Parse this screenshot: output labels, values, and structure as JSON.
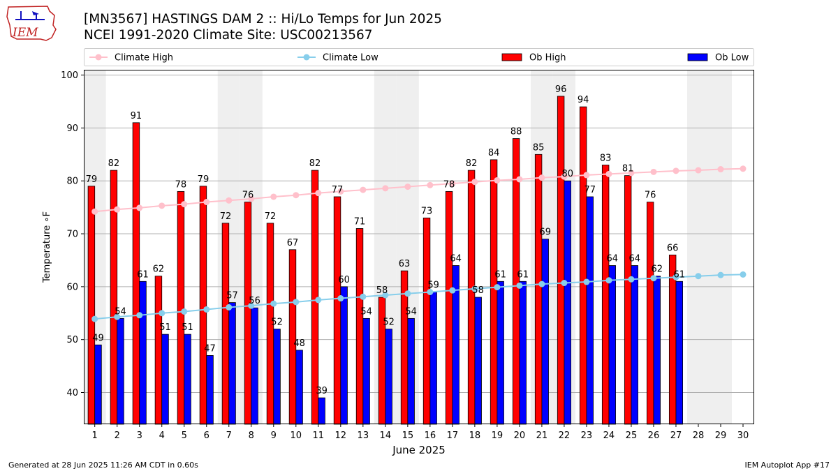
{
  "header": {
    "logo_text": "IEM",
    "title_line1": "[MN3567] HASTINGS DAM 2 :: Hi/Lo Temps for Jun 2025",
    "title_line2": "NCEI 1991-2020 Climate Site: USC00213567"
  },
  "footer": {
    "generated": "Generated at 28 Jun 2025 11:26 AM CDT in 0.60s",
    "app": "IEM Autoplot App #17"
  },
  "chart_data": {
    "type": "bar",
    "xlabel": "June 2025",
    "ylabel": "Temperature ∘F",
    "ylim": [
      34,
      101
    ],
    "yticks": [
      40,
      50,
      60,
      70,
      80,
      90,
      100
    ],
    "grid": "horizontal",
    "legend_placement": "top",
    "weekend_shading_days": [
      1,
      7,
      8,
      14,
      15,
      21,
      22,
      28,
      29
    ],
    "categories": [
      1,
      2,
      3,
      4,
      5,
      6,
      7,
      8,
      9,
      10,
      11,
      12,
      13,
      14,
      15,
      16,
      17,
      18,
      19,
      20,
      21,
      22,
      23,
      24,
      25,
      26,
      27,
      28,
      29,
      30
    ],
    "series": [
      {
        "name": "Climate High",
        "kind": "line",
        "color": "#ffc0cb",
        "values": [
          74.2,
          74.6,
          74.9,
          75.3,
          75.6,
          76.0,
          76.3,
          76.6,
          77.0,
          77.3,
          77.7,
          78.0,
          78.3,
          78.6,
          78.9,
          79.2,
          79.5,
          79.8,
          80.1,
          80.3,
          80.6,
          80.8,
          81.1,
          81.3,
          81.5,
          81.7,
          81.9,
          82.0,
          82.2,
          82.3
        ]
      },
      {
        "name": "Climate Low",
        "kind": "line",
        "color": "#87ceeb",
        "values": [
          53.9,
          54.3,
          54.6,
          55.0,
          55.3,
          55.7,
          56.1,
          56.4,
          56.8,
          57.1,
          57.5,
          57.8,
          58.1,
          58.4,
          58.7,
          59.0,
          59.3,
          59.6,
          59.9,
          60.2,
          60.5,
          60.7,
          60.9,
          61.2,
          61.4,
          61.6,
          61.8,
          62.0,
          62.2,
          62.3
        ]
      },
      {
        "name": "Ob High",
        "kind": "bar",
        "color": "#ff0000",
        "values": [
          79,
          82,
          91,
          62,
          78,
          79,
          72,
          76,
          72,
          67,
          82,
          77,
          71,
          58,
          63,
          73,
          78,
          82,
          84,
          88,
          85,
          96,
          94,
          83,
          81,
          76,
          66,
          null,
          null,
          null
        ]
      },
      {
        "name": "Ob Low",
        "kind": "bar",
        "color": "#0000ff",
        "values": [
          49,
          54,
          61,
          51,
          51,
          47,
          57,
          56,
          52,
          48,
          39,
          60,
          54,
          52,
          54,
          59,
          64,
          58,
          61,
          61,
          69,
          80,
          77,
          64,
          64,
          62,
          61,
          null,
          null,
          null
        ]
      }
    ]
  }
}
